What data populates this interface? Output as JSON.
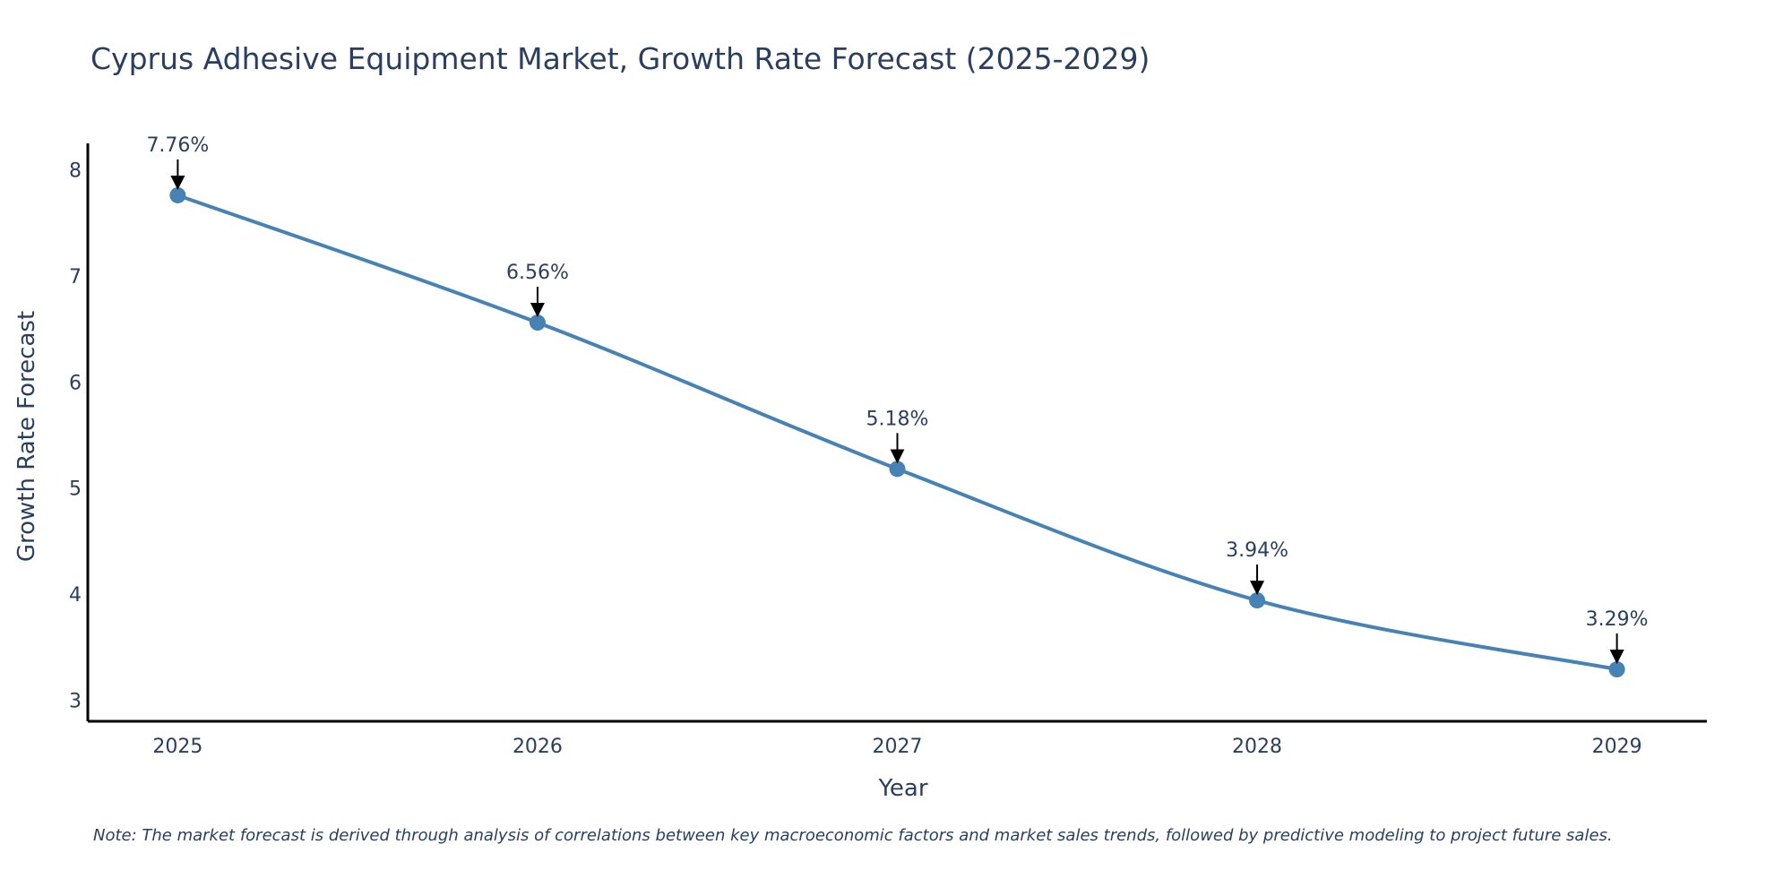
{
  "chart_data": {
    "type": "line",
    "title": "Cyprus Adhesive Equipment Market, Growth Rate Forecast (2025-2029)",
    "xlabel": "Year",
    "ylabel": "Growth Rate Forecast",
    "categories": [
      "2025",
      "2026",
      "2027",
      "2028",
      "2029"
    ],
    "x": [
      2025,
      2026,
      2027,
      2028,
      2029
    ],
    "values": [
      7.76,
      6.56,
      5.18,
      3.94,
      3.29
    ],
    "data_labels": [
      "7.76%",
      "6.56%",
      "5.18%",
      "3.94%",
      "3.29%"
    ],
    "ylim": [
      2.8,
      8.25
    ],
    "yticks": [
      3,
      4,
      5,
      6,
      7,
      8
    ],
    "line_color": "#4682b4",
    "axis_color": "#000000",
    "text_color": "#2a3f5f",
    "grid": false,
    "note": "Note: The market forecast is derived through analysis of correlations between key macroeconomic factors and market sales trends, followed by predictive modeling to project future sales."
  }
}
